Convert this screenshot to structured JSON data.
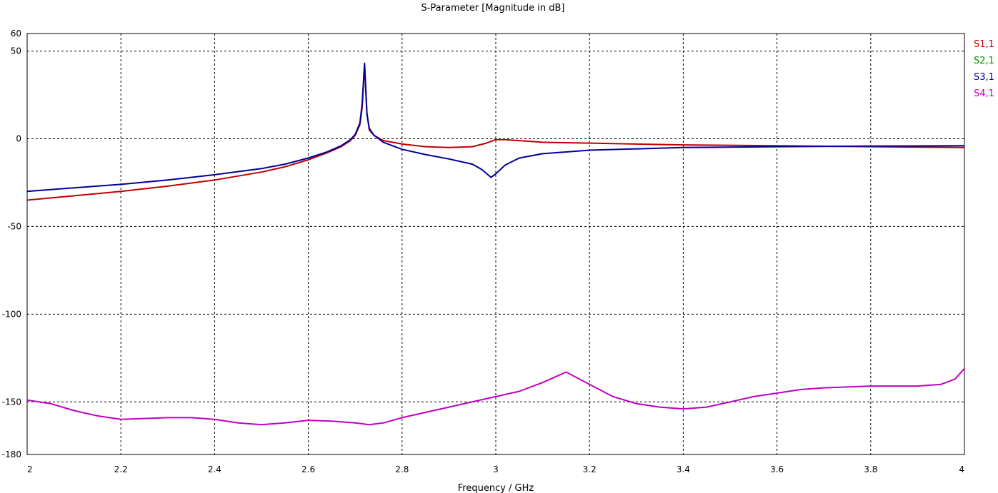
{
  "chart_data": {
    "type": "line",
    "title": "S-Parameter [Magnitude in dB]",
    "xlabel": "Frequency / GHz",
    "ylabel": "",
    "xlim": [
      2,
      4
    ],
    "ylim": [
      -180,
      60
    ],
    "x_ticks": [
      2,
      2.2,
      2.4,
      2.6,
      2.8,
      3,
      3.2,
      3.4,
      3.6,
      3.8,
      4
    ],
    "x_tick_labels": [
      "2",
      "2.2",
      "2.4",
      "2.6",
      "2.8",
      "3",
      "3.2",
      "3.4",
      "3.6",
      "3.8",
      "4"
    ],
    "y_ticks": [
      60,
      50,
      0,
      -50,
      -100,
      -150,
      -180
    ],
    "y_tick_labels": [
      "60",
      "50",
      "0",
      "-50",
      "-100",
      "-150",
      "-180"
    ],
    "grid": true,
    "legend_position": "right",
    "series": [
      {
        "name": "S1,1",
        "color": "#c00000",
        "points": [
          [
            2.0,
            -35
          ],
          [
            2.1,
            -32.5
          ],
          [
            2.2,
            -30
          ],
          [
            2.3,
            -27
          ],
          [
            2.4,
            -23.5
          ],
          [
            2.5,
            -19
          ],
          [
            2.55,
            -16
          ],
          [
            2.6,
            -12
          ],
          [
            2.64,
            -8
          ],
          [
            2.67,
            -4.5
          ],
          [
            2.69,
            -1
          ],
          [
            2.7,
            2
          ],
          [
            2.71,
            8
          ],
          [
            2.715,
            18
          ],
          [
            2.72,
            42
          ],
          [
            2.725,
            15
          ],
          [
            2.73,
            5
          ],
          [
            2.74,
            2
          ],
          [
            2.76,
            -1
          ],
          [
            2.8,
            -3
          ],
          [
            2.85,
            -4.5
          ],
          [
            2.9,
            -5
          ],
          [
            2.95,
            -4.5
          ],
          [
            2.98,
            -2.5
          ],
          [
            3.0,
            -0.5
          ],
          [
            3.02,
            -0.5
          ],
          [
            3.1,
            -2
          ],
          [
            3.2,
            -2.5
          ],
          [
            3.4,
            -3.5
          ],
          [
            3.6,
            -4
          ],
          [
            3.8,
            -4.5
          ],
          [
            4.0,
            -5
          ]
        ]
      },
      {
        "name": "S2,1",
        "color": "#009000",
        "points": []
      },
      {
        "name": "S3,1",
        "color": "#000099",
        "points": [
          [
            2.0,
            -30
          ],
          [
            2.1,
            -28
          ],
          [
            2.2,
            -26
          ],
          [
            2.3,
            -23.5
          ],
          [
            2.4,
            -20.5
          ],
          [
            2.5,
            -17
          ],
          [
            2.55,
            -14.5
          ],
          [
            2.6,
            -11
          ],
          [
            2.64,
            -7.5
          ],
          [
            2.67,
            -4
          ],
          [
            2.69,
            -0.5
          ],
          [
            2.7,
            2.5
          ],
          [
            2.71,
            9
          ],
          [
            2.715,
            20
          ],
          [
            2.72,
            43
          ],
          [
            2.725,
            14
          ],
          [
            2.73,
            6
          ],
          [
            2.74,
            2
          ],
          [
            2.76,
            -2
          ],
          [
            2.8,
            -6
          ],
          [
            2.85,
            -9
          ],
          [
            2.9,
            -11.5
          ],
          [
            2.95,
            -14.5
          ],
          [
            2.97,
            -17.5
          ],
          [
            2.99,
            -22
          ],
          [
            3.0,
            -20
          ],
          [
            3.02,
            -15
          ],
          [
            3.05,
            -11
          ],
          [
            3.1,
            -8.5
          ],
          [
            3.2,
            -6.5
          ],
          [
            3.4,
            -5
          ],
          [
            3.6,
            -4.5
          ],
          [
            3.8,
            -4.2
          ],
          [
            4.0,
            -4
          ]
        ]
      },
      {
        "name": "S4,1",
        "color": "#c000c0",
        "points": [
          [
            2.0,
            -149
          ],
          [
            2.05,
            -151
          ],
          [
            2.1,
            -155
          ],
          [
            2.15,
            -158
          ],
          [
            2.2,
            -160
          ],
          [
            2.25,
            -159.5
          ],
          [
            2.3,
            -159
          ],
          [
            2.35,
            -159
          ],
          [
            2.4,
            -160
          ],
          [
            2.45,
            -162
          ],
          [
            2.5,
            -163
          ],
          [
            2.55,
            -162
          ],
          [
            2.6,
            -160.5
          ],
          [
            2.65,
            -161
          ],
          [
            2.7,
            -162
          ],
          [
            2.73,
            -163
          ],
          [
            2.76,
            -162
          ],
          [
            2.8,
            -159
          ],
          [
            2.9,
            -153
          ],
          [
            3.0,
            -147
          ],
          [
            3.05,
            -144
          ],
          [
            3.1,
            -139
          ],
          [
            3.15,
            -133
          ],
          [
            3.2,
            -140
          ],
          [
            3.25,
            -147
          ],
          [
            3.3,
            -151
          ],
          [
            3.35,
            -153
          ],
          [
            3.4,
            -154
          ],
          [
            3.45,
            -153
          ],
          [
            3.5,
            -150
          ],
          [
            3.55,
            -147
          ],
          [
            3.6,
            -145
          ],
          [
            3.65,
            -143
          ],
          [
            3.7,
            -142
          ],
          [
            3.75,
            -141.5
          ],
          [
            3.8,
            -141
          ],
          [
            3.85,
            -141
          ],
          [
            3.9,
            -141
          ],
          [
            3.95,
            -140
          ],
          [
            3.98,
            -137
          ],
          [
            4.0,
            -131
          ]
        ]
      }
    ]
  }
}
